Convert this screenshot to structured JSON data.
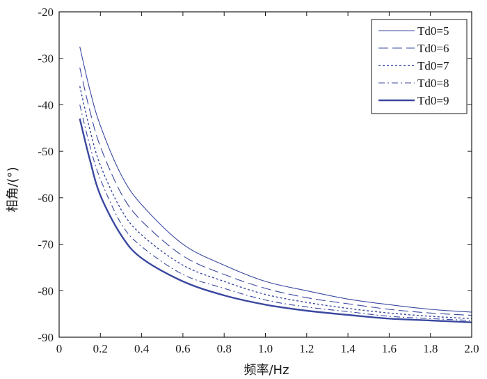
{
  "chart_data": {
    "type": "line",
    "title": "",
    "xlabel": "频率/Hz",
    "ylabel": "相角/(°)",
    "xlim": [
      0,
      2.0
    ],
    "ylim": [
      -90,
      -20
    ],
    "xticks": [
      "0",
      "0.2",
      "0.4",
      "0.6",
      "0.8",
      "1.0",
      "1.2",
      "1.4",
      "1.6",
      "1.8",
      "2.0"
    ],
    "yticks": [
      "-20",
      "-30",
      "-40",
      "-50",
      "-60",
      "-70",
      "-80",
      "-90"
    ],
    "grid": false,
    "legend_position": "top-right",
    "color": "#3a48a0",
    "x": [
      0.1,
      0.15,
      0.2,
      0.3,
      0.4,
      0.6,
      0.8,
      1.0,
      1.2,
      1.4,
      1.6,
      1.8,
      2.0
    ],
    "series": [
      {
        "name": "Td0=5",
        "style": "thin-solid",
        "values": [
          -27.5,
          -37,
          -44.5,
          -55,
          -61.5,
          -70,
          -74.5,
          -78,
          -80,
          -81.8,
          -83,
          -84,
          -84.6
        ]
      },
      {
        "name": "Td0=6",
        "style": "long-dash",
        "values": [
          -32,
          -41.5,
          -49,
          -59,
          -65,
          -72.5,
          -76.5,
          -79.5,
          -81.5,
          -82.8,
          -84,
          -84.8,
          -85.3
        ]
      },
      {
        "name": "Td0=7",
        "style": "dotted",
        "values": [
          -36,
          -45.5,
          -53,
          -62.5,
          -68,
          -74.5,
          -78,
          -80.8,
          -82.5,
          -83.8,
          -84.8,
          -85.5,
          -86
        ]
      },
      {
        "name": "Td0=8",
        "style": "dash-dot",
        "values": [
          -40,
          -49,
          -56,
          -65.5,
          -70.5,
          -76.5,
          -79.5,
          -82,
          -83.5,
          -84.5,
          -85.5,
          -86,
          -86.4
        ]
      },
      {
        "name": "Td0=9",
        "style": "thick-solid",
        "values": [
          -43,
          -52,
          -59.5,
          -68,
          -73,
          -78,
          -81,
          -83,
          -84.3,
          -85.2,
          -86,
          -86.4,
          -86.8
        ]
      }
    ]
  }
}
